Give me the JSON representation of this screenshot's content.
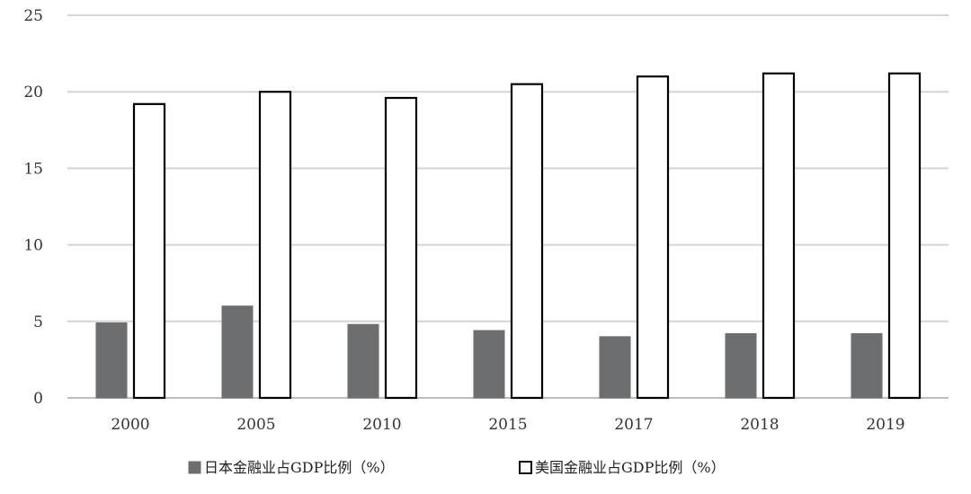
{
  "chart_data": {
    "type": "bar",
    "title": "",
    "xlabel": "",
    "ylabel": "",
    "categories": [
      "2000",
      "2005",
      "2010",
      "2015",
      "2017",
      "2018",
      "2019"
    ],
    "ylim": [
      0,
      25
    ],
    "yticks": [
      0,
      5,
      10,
      15,
      20,
      25
    ],
    "grid": true,
    "legend_position": "bottom",
    "series": [
      {
        "name": "日本金融业占GDP比例（%）",
        "values": [
          4.9,
          6.0,
          4.8,
          4.4,
          4.0,
          4.2,
          4.2
        ],
        "fill": "#6d6e70",
        "stroke": "#6d6e70"
      },
      {
        "name": "美国金融业占GDP比例（%）",
        "values": [
          19.2,
          20.0,
          19.6,
          20.5,
          21.0,
          21.2,
          21.2
        ],
        "fill": "#ffffff",
        "stroke": "#000000"
      }
    ],
    "colors": {
      "grid": "#d4d4d4",
      "axis": "#bdbdbd",
      "text": "#333333"
    }
  }
}
